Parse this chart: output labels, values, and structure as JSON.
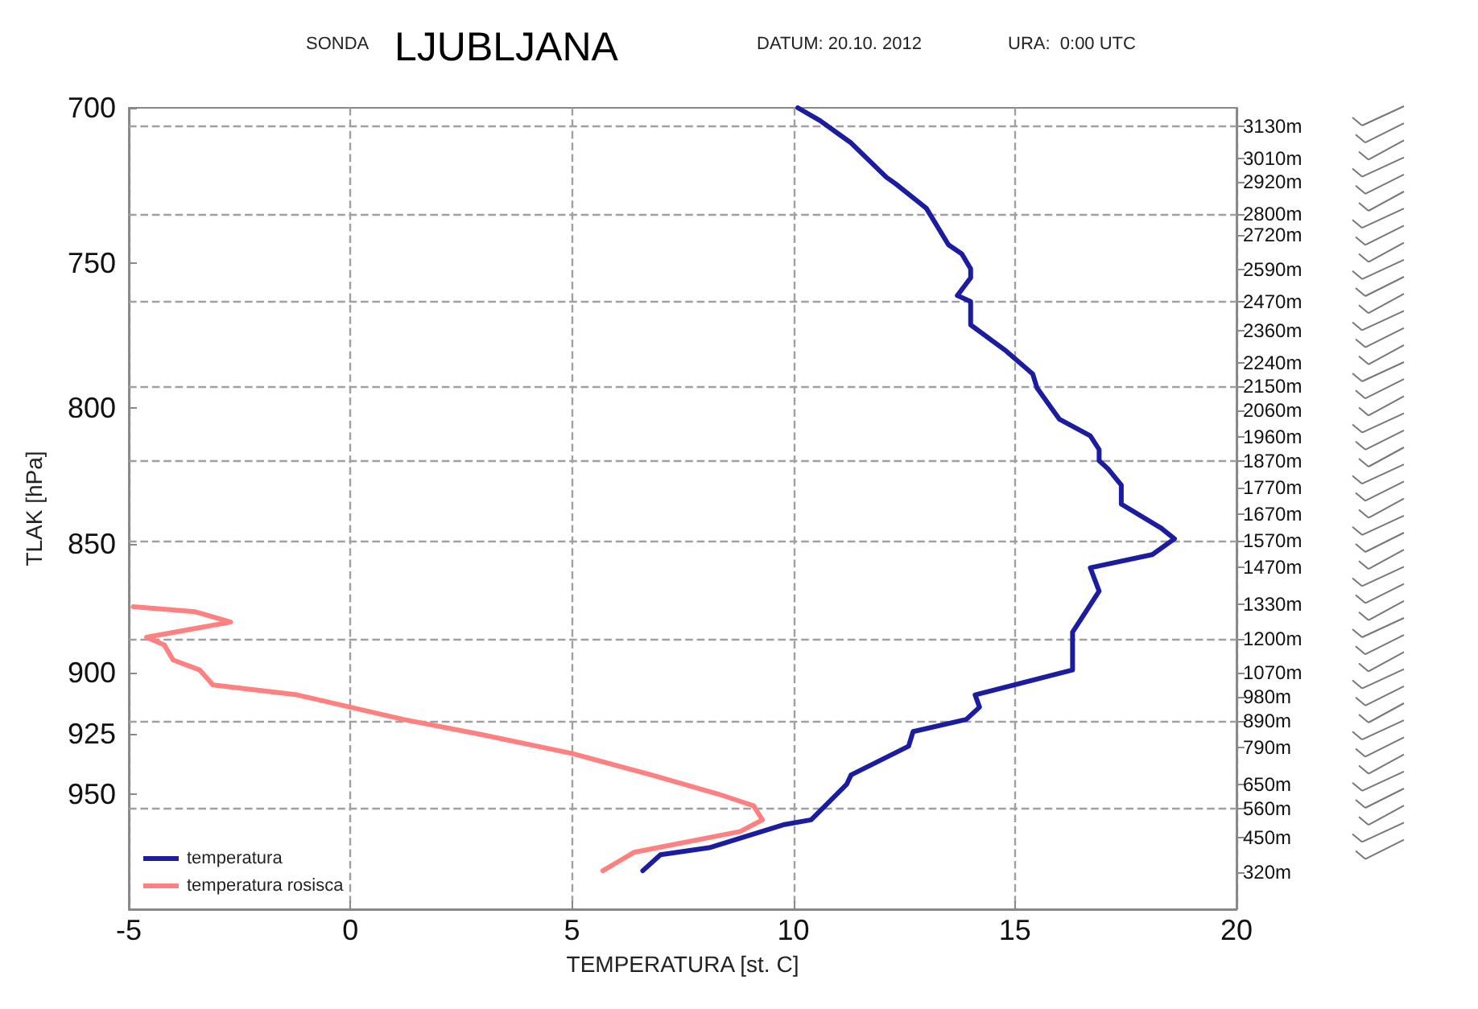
{
  "chart_data": {
    "type": "line",
    "title": "LJUBLJANA",
    "annotations": [
      "SONDA",
      "DATUM: 20.10. 2012",
      "URA:  0:00 UTC"
    ],
    "xlabel": "TEMPERATURA [st. C]",
    "ylabel": "TLAK [hPa]",
    "xlim": [
      -5,
      20
    ],
    "xticks": [
      -5,
      0,
      5,
      10,
      15,
      20
    ],
    "ylim": [
      1000,
      700
    ],
    "yticks": [
      700,
      750,
      800,
      850,
      900,
      925,
      950
    ],
    "log": true,
    "y2lim": [
      180,
      3200
    ],
    "y2ticks": [
      {
        "value": 3130,
        "label": "3130m"
      },
      {
        "value": 3010,
        "label": "3010m"
      },
      {
        "value": 2920,
        "label": "2920m"
      },
      {
        "value": 2800,
        "label": "2800m"
      },
      {
        "value": 2720,
        "label": "2720m"
      },
      {
        "value": 2590,
        "label": "2590m"
      },
      {
        "value": 2470,
        "label": "2470m"
      },
      {
        "value": 2360,
        "label": "2360m"
      },
      {
        "value": 2240,
        "label": "2240m"
      },
      {
        "value": 2150,
        "label": "2150m"
      },
      {
        "value": 2060,
        "label": "2060m"
      },
      {
        "value": 1960,
        "label": "1960m"
      },
      {
        "value": 1870,
        "label": "1870m"
      },
      {
        "value": 1770,
        "label": "1770m"
      },
      {
        "value": 1670,
        "label": "1670m"
      },
      {
        "value": 1570,
        "label": "1570m"
      },
      {
        "value": 1470,
        "label": "1470m"
      },
      {
        "value": 1330,
        "label": "1330m"
      },
      {
        "value": 1200,
        "label": "1200m"
      },
      {
        "value": 1070,
        "label": "1070m"
      },
      {
        "value": 980,
        "label": "980m"
      },
      {
        "value": 890,
        "label": "890m"
      },
      {
        "value": 790,
        "label": "790m"
      },
      {
        "value": 650,
        "label": "650m"
      },
      {
        "value": 560,
        "label": "560m"
      },
      {
        "value": 450,
        "label": "450m"
      },
      {
        "value": 320,
        "label": "320m"
      }
    ],
    "grid": "x",
    "legend": "bottom left",
    "marker": "none",
    "line_style": "solid",
    "ref_lines": [
      {
        "axis": "y2",
        "value": 3130,
        "color": "#a0a0a0",
        "line_style": "dashed"
      },
      {
        "axis": "y2",
        "value": 2800,
        "color": "#a0a0a0",
        "line_style": "dashed"
      },
      {
        "axis": "y2",
        "value": 2470,
        "color": "#a0a0a0",
        "line_style": "dashed"
      },
      {
        "axis": "y2",
        "value": 2150,
        "color": "#a0a0a0",
        "line_style": "dashed"
      },
      {
        "axis": "y2",
        "value": 1870,
        "color": "#a0a0a0",
        "line_style": "dashed"
      },
      {
        "axis": "y2",
        "value": 1570,
        "color": "#a0a0a0",
        "line_style": "dashed"
      },
      {
        "axis": "y2",
        "value": 1200,
        "color": "#a0a0a0",
        "line_style": "dashed"
      },
      {
        "axis": "y2",
        "value": 890,
        "color": "#a0a0a0",
        "line_style": "dashed"
      },
      {
        "axis": "y2",
        "value": 560,
        "color": "#a0a0a0",
        "line_style": "dashed"
      }
    ],
    "series": [
      {
        "name": "temperatura",
        "color": "#1c1ca0",
        "x": [
          10.1,
          10.6,
          11.0,
          11.3,
          12.1,
          12.3,
          13.0,
          13.5,
          13.8,
          14.0,
          14.0,
          13.7,
          14.0,
          14.0,
          14.8,
          15.4,
          15.5,
          16.0,
          16.7,
          16.9,
          16.9,
          17.1,
          17.4,
          17.4,
          17.4,
          18.3,
          18.6,
          18.1,
          16.7,
          16.9,
          16.3,
          16.3,
          16.3,
          14.1,
          14.2,
          13.9,
          12.7,
          12.6,
          11.3,
          11.2,
          10.4,
          9.8,
          8.1,
          7.0,
          6.6
        ],
        "values": [
          700,
          704,
          708,
          711,
          722,
          724,
          732,
          744,
          747,
          752,
          755,
          761,
          763,
          771,
          780,
          788,
          793,
          804,
          810,
          815,
          819,
          822,
          828,
          833,
          835,
          844,
          848,
          854,
          859,
          868,
          884,
          891,
          899,
          909,
          914,
          919,
          924,
          930,
          942,
          946,
          961,
          963,
          973,
          976,
          983
        ]
      },
      {
        "name": "temperatura rosisca",
        "color": "#ff8080",
        "x": [
          -4.9,
          -3.5,
          -2.7,
          -4.6,
          -4.2,
          -4.0,
          -3.4,
          -3.1,
          -1.2,
          0.0,
          1.2,
          2.9,
          5.0,
          6.8,
          8.3,
          9.1,
          9.3,
          8.8,
          6.4,
          5.7
        ],
        "values": [
          874,
          876,
          880,
          886,
          889,
          895,
          899,
          905,
          909,
          914,
          919,
          925,
          933,
          942,
          950,
          955,
          961,
          966,
          975,
          983
        ]
      }
    ]
  }
}
